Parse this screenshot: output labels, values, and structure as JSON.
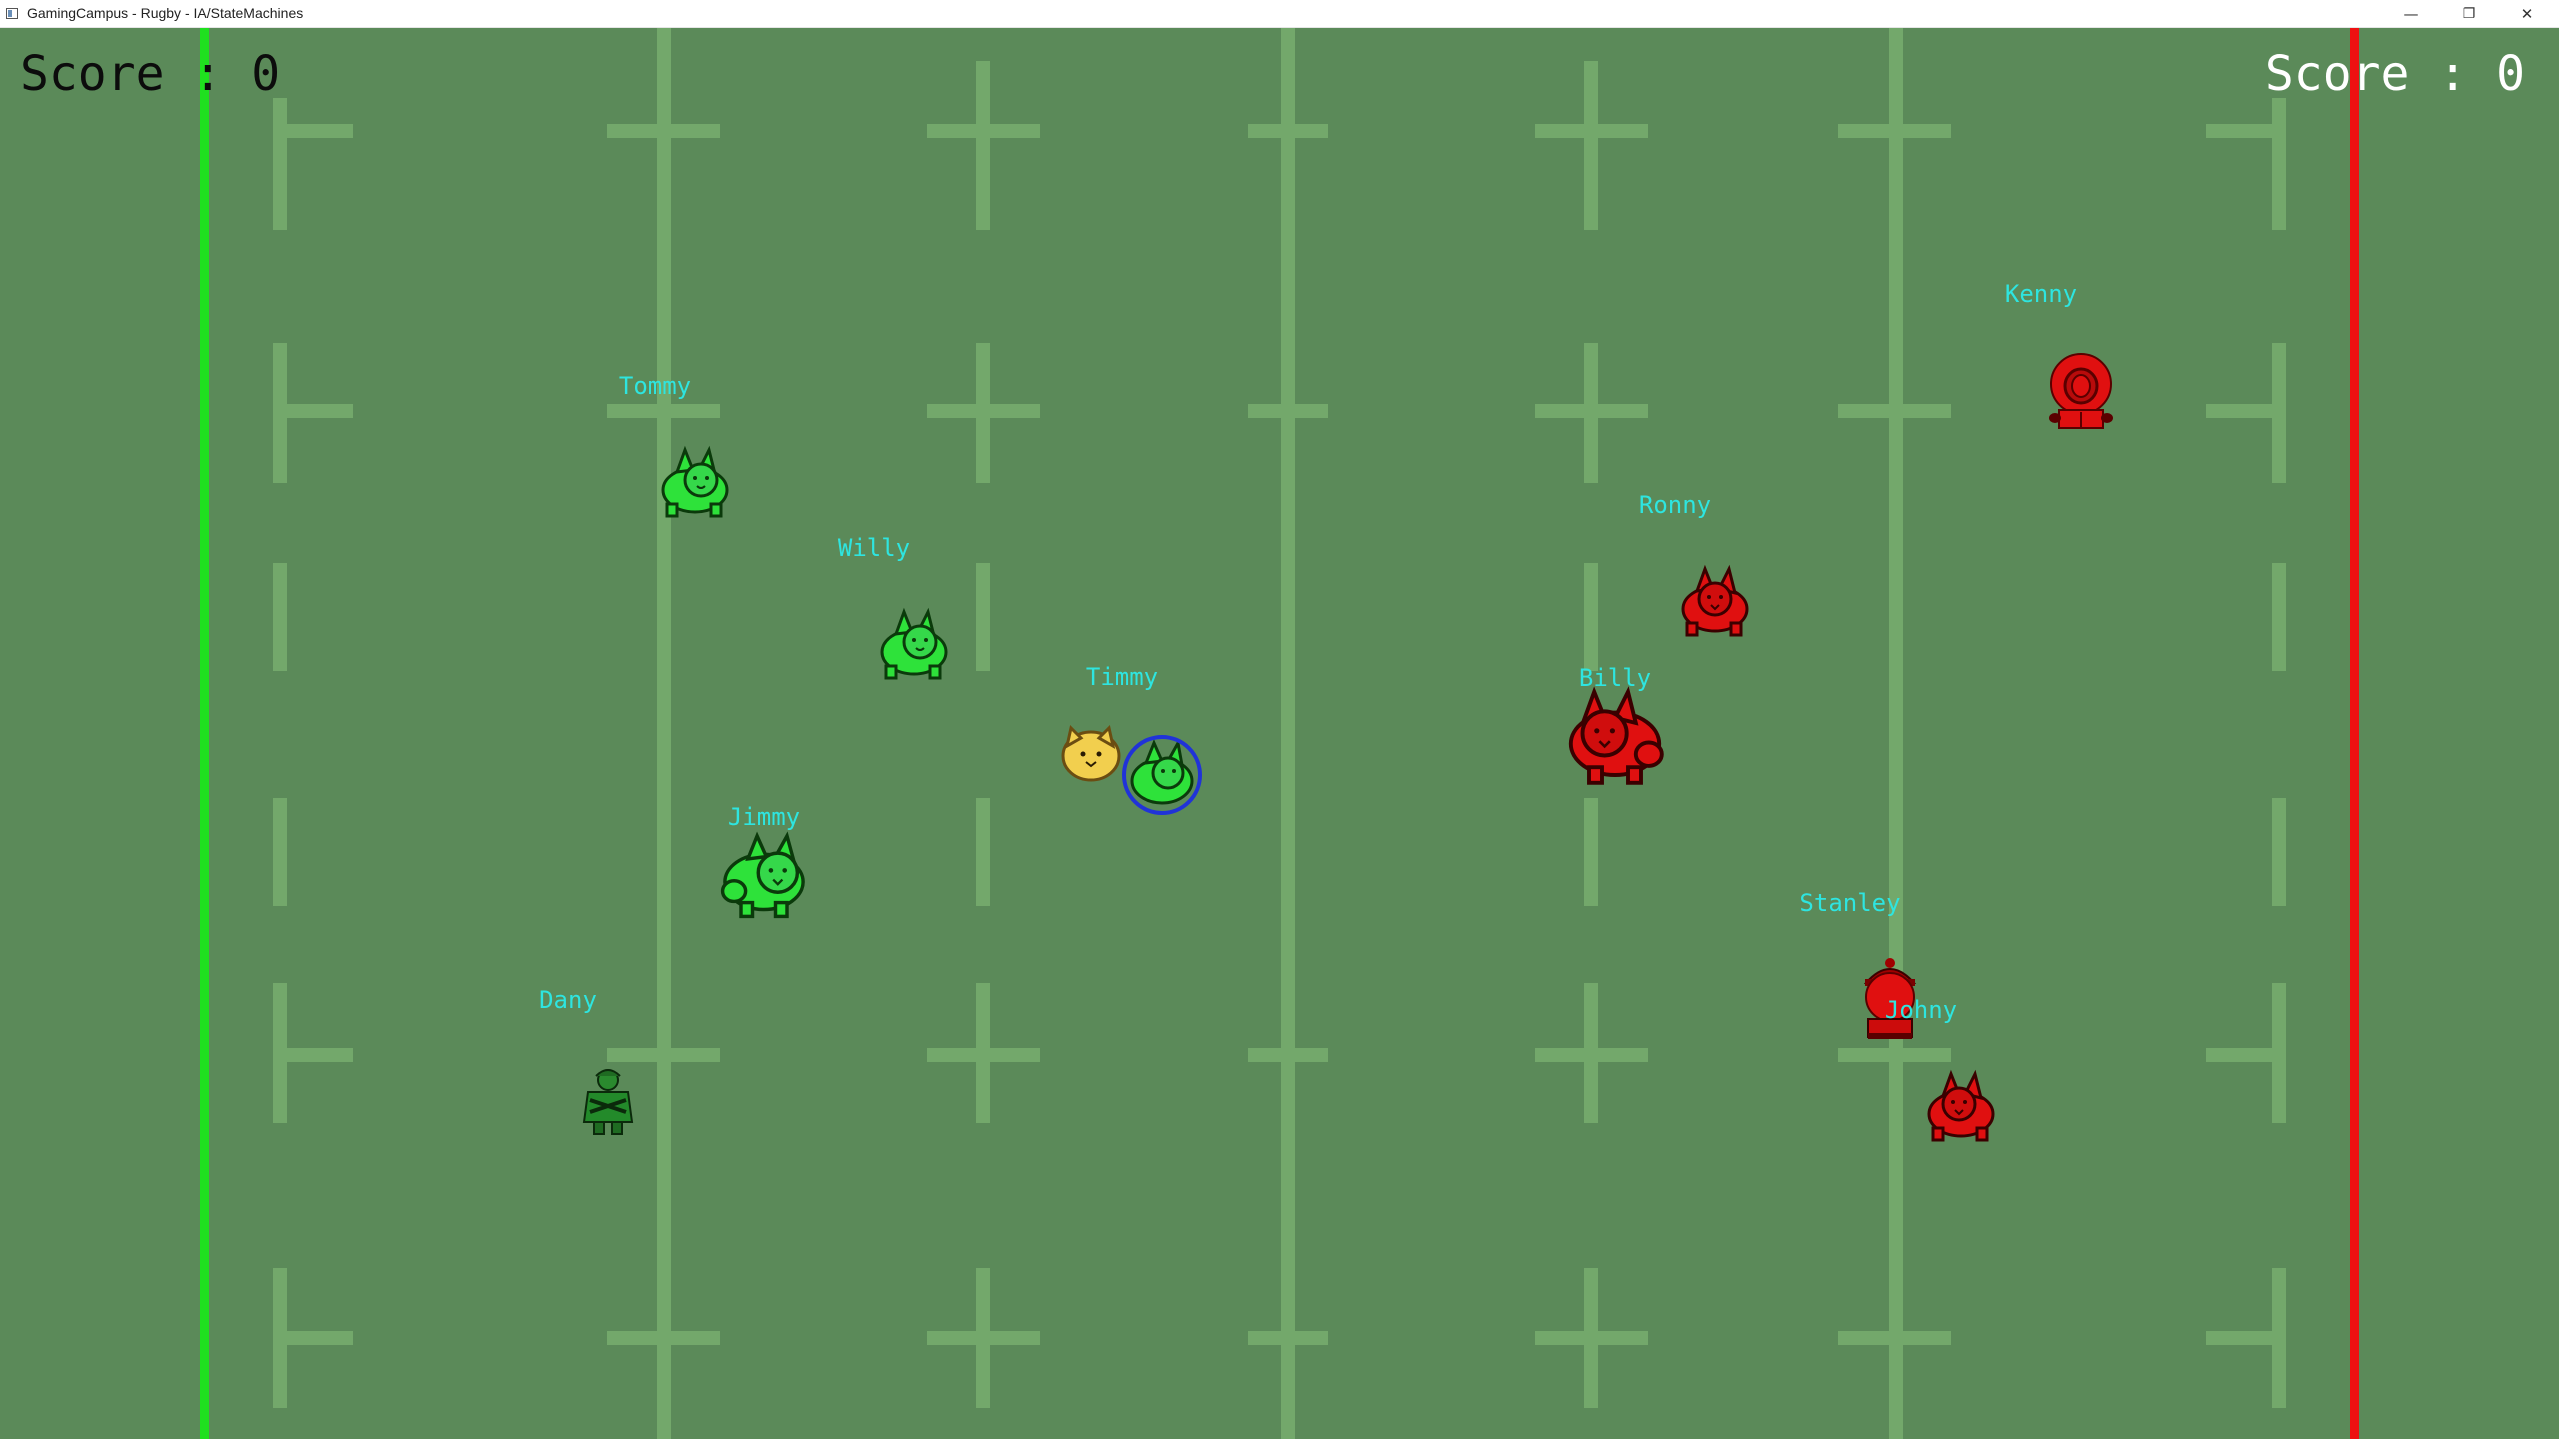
{
  "window": {
    "title": "GamingCampus - Rugby - IA/StateMachines",
    "minimize_glyph": "—",
    "maximize_glyph": "❐",
    "close_glyph": "✕"
  },
  "scores": {
    "left": "Score : 0",
    "right": "Score : 0"
  },
  "colors": {
    "field": "#5b8a59",
    "field_lines": "#73a86b",
    "green_goal": "#1fe01f",
    "red_goal": "#ee1111",
    "green_team": "#2ee23a",
    "red_team": "#e01010",
    "player_names": "#2ee5e0",
    "selection_ring": "#2033d8",
    "ball": "#f2cf4e"
  },
  "teams": {
    "green": {
      "players": [
        {
          "name": "Tommy",
          "sprite": "green-cat-icon"
        },
        {
          "name": "Willy",
          "sprite": "green-cat-icon"
        },
        {
          "name": "Timmy",
          "sprite": "green-cat-icon",
          "has_ball": true,
          "selected": true
        },
        {
          "name": "Jimmy",
          "sprite": "green-big-cat-icon"
        },
        {
          "name": "Dany",
          "sprite": "green-soldier-icon"
        }
      ]
    },
    "red": {
      "players": [
        {
          "name": "Kenny",
          "sprite": "red-hooded-kid-icon"
        },
        {
          "name": "Ronny",
          "sprite": "red-cat-icon"
        },
        {
          "name": "Billy",
          "sprite": "red-big-cat-icon"
        },
        {
          "name": "Stanley",
          "sprite": "red-kid-hat-icon"
        },
        {
          "name": "Johny",
          "sprite": "red-cat-icon"
        }
      ]
    }
  },
  "ball": {
    "sprite": "rugby-ball-cat-icon"
  }
}
